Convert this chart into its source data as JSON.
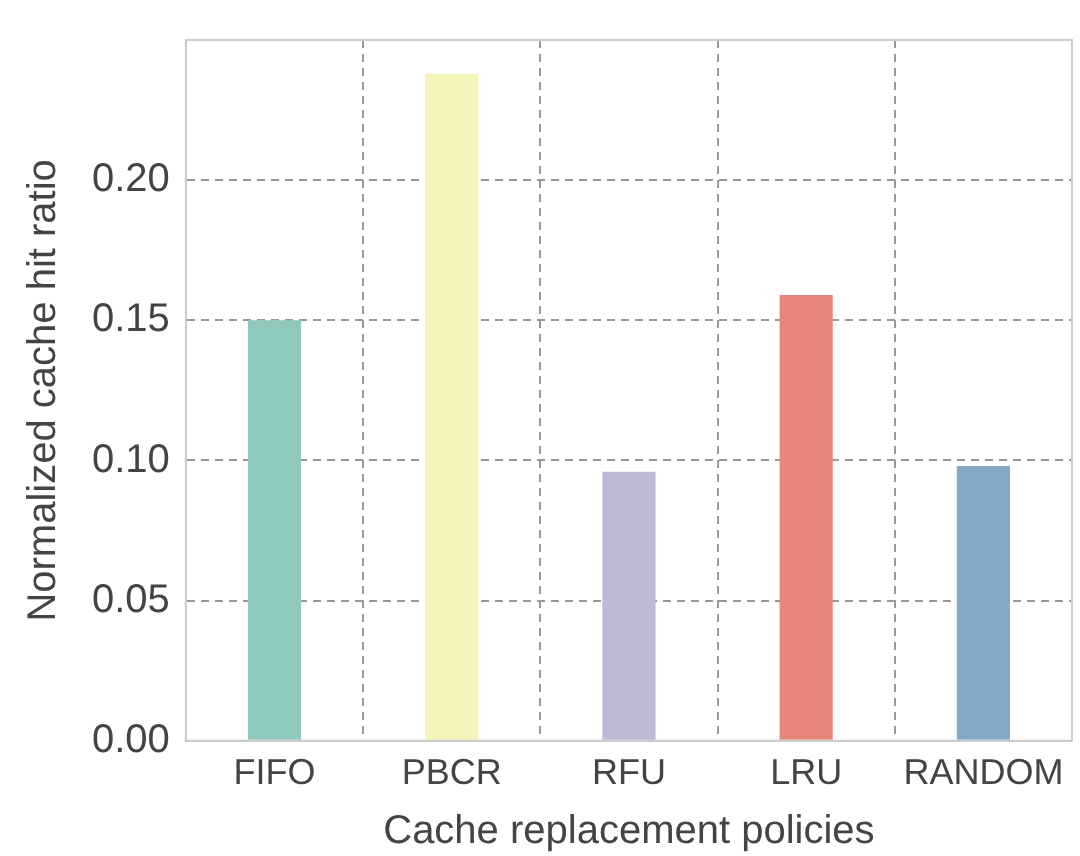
{
  "chart_data": {
    "type": "bar",
    "xlabel": "Cache replacement policies",
    "ylabel": "Normalized cache hit ratio",
    "categories": [
      "FIFO",
      "PBCR",
      "RFU",
      "LRU",
      "RANDOM"
    ],
    "values": [
      0.15,
      0.238,
      0.096,
      0.159,
      0.098
    ],
    "colors": [
      "#8fc8bd",
      "#f4f3b9",
      "#bdbad6",
      "#e8857a",
      "#82a8c6"
    ],
    "ylim": [
      0,
      0.25
    ],
    "yticks": [
      {
        "value": 0,
        "label": "0.00"
      },
      {
        "value": 0.05,
        "label": "0.05"
      },
      {
        "value": 0.1,
        "label": "0.10"
      },
      {
        "value": 0.15,
        "label": "0.15"
      },
      {
        "value": 0.2,
        "label": "0.20"
      }
    ],
    "grid": true
  }
}
